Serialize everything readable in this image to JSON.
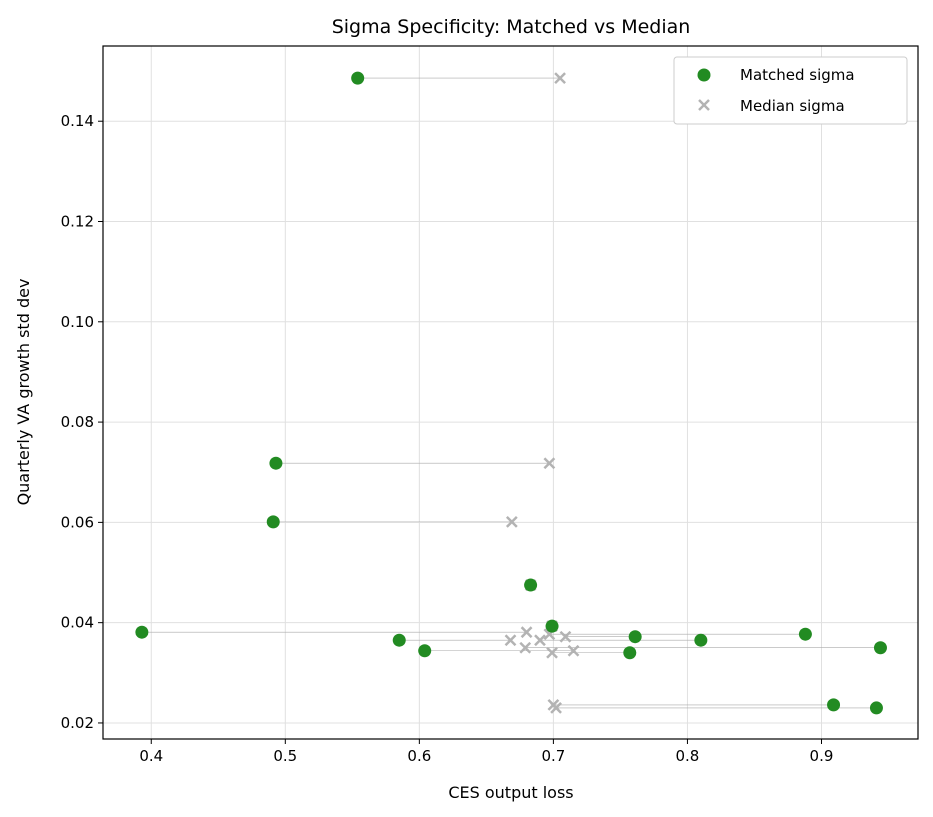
{
  "chart_data": {
    "type": "scatter",
    "title": "Sigma Specificity: Matched vs Median",
    "xlabel": "CES output loss",
    "ylabel": "Quarterly VA growth std dev",
    "xlim": [
      0.364,
      0.972
    ],
    "ylim": [
      0.0168,
      0.155
    ],
    "xticks": [
      "0.4",
      "0.5",
      "0.6",
      "0.7",
      "0.8",
      "0.9"
    ],
    "yticks": [
      "0.02",
      "0.04",
      "0.06",
      "0.08",
      "0.10",
      "0.12",
      "0.14"
    ],
    "grid": true,
    "legend": "top-right",
    "series": [
      {
        "name": "Matched sigma",
        "color": "#228b22",
        "marker": "circle",
        "points": [
          [
            0.554,
            0.1486
          ],
          [
            0.493,
            0.0718
          ],
          [
            0.491,
            0.0601
          ],
          [
            0.683,
            0.0475
          ],
          [
            0.393,
            0.0381
          ],
          [
            0.699,
            0.0393
          ],
          [
            0.888,
            0.0377
          ],
          [
            0.585,
            0.0365
          ],
          [
            0.81,
            0.0365
          ],
          [
            0.761,
            0.0372
          ],
          [
            0.604,
            0.0344
          ],
          [
            0.757,
            0.034
          ],
          [
            0.944,
            0.035
          ],
          [
            0.909,
            0.0236
          ],
          [
            0.941,
            0.023
          ]
        ]
      },
      {
        "name": "Median sigma",
        "color": "#b3b3b3",
        "marker": "x",
        "points": [
          [
            0.705,
            0.1486
          ],
          [
            0.697,
            0.0718
          ],
          [
            0.669,
            0.0601
          ],
          [
            0.683,
            0.0475
          ],
          [
            0.68,
            0.0381
          ],
          [
            0.699,
            0.0393
          ],
          [
            0.697,
            0.0377
          ],
          [
            0.668,
            0.0365
          ],
          [
            0.69,
            0.0365
          ],
          [
            0.709,
            0.0372
          ],
          [
            0.715,
            0.0344
          ],
          [
            0.699,
            0.034
          ],
          [
            0.679,
            0.035
          ],
          [
            0.7,
            0.0236
          ],
          [
            0.702,
            0.023
          ]
        ]
      }
    ]
  }
}
